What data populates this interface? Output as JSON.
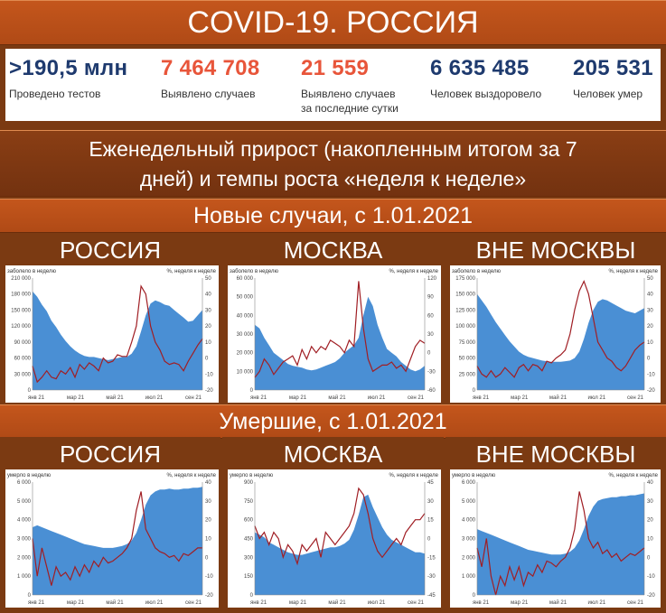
{
  "title": "COVID-19. РОССИЯ",
  "stats": [
    {
      "value": ">190,5 млн",
      "label": "Проведено тестов",
      "color": "blue"
    },
    {
      "value": "7 464 708",
      "label": "Выявлено случаев",
      "color": "red"
    },
    {
      "value": "21 559",
      "label": "Выявлено случаев\nза последние сутки",
      "color": "red"
    },
    {
      "value": "6 635 485",
      "label": "Человек выздоровело",
      "color": "blue"
    },
    {
      "value": "205 531",
      "label": "Человек умер",
      "color": "blue"
    }
  ],
  "subtitle_line1": "Еженедельный прирост (накопленным итогом за 7",
  "subtitle_line2": "дней) и темпы роста «неделя к неделе»",
  "section_cases": "Новые случаи, с 1.01.2021",
  "section_deaths": "Умершие, с 1.01.2021",
  "column_titles": [
    "РОССИЯ",
    "МОСКВА",
    "ВНЕ МОСКВЫ"
  ],
  "colors": {
    "area": "#4a8fd4",
    "line": "#a01e24"
  },
  "chart_data": [
    {
      "type": "area",
      "region": "РОССИЯ",
      "metric": "cases",
      "left_label": "заболело в неделю",
      "right_label": "%, неделя к неделе",
      "y_ticks": [
        "210 000",
        "180 000",
        "150 000",
        "120 000",
        "90 000",
        "60 000",
        "30 000",
        "0"
      ],
      "y_max": 210000,
      "r_ticks": [
        "50",
        "40",
        "30",
        "20",
        "10",
        "0",
        "-10",
        "-20"
      ],
      "r_min": -20,
      "r_max": 50,
      "x_ticks": [
        "янв 21",
        "мар 21",
        "май 21",
        "июл 21",
        "сен 21"
      ],
      "area_values": [
        185000,
        175000,
        160000,
        148000,
        130000,
        118000,
        104000,
        92000,
        82000,
        74000,
        68000,
        64000,
        62000,
        62000,
        60000,
        58000,
        56000,
        58000,
        60000,
        62000,
        62000,
        68000,
        82000,
        110000,
        140000,
        162000,
        168000,
        165000,
        160000,
        158000,
        150000,
        143000,
        136000,
        128000,
        130000,
        140000,
        150000
      ],
      "line_values": [
        -5,
        -15,
        -12,
        -8,
        -12,
        -13,
        -8,
        -10,
        -6,
        -12,
        -4,
        -7,
        -3,
        -5,
        -8,
        0,
        -3,
        -2,
        2,
        1,
        1,
        10,
        20,
        45,
        40,
        20,
        10,
        5,
        -2,
        -4,
        -3,
        -4,
        -8,
        -2,
        3,
        8,
        12
      ]
    },
    {
      "type": "area",
      "region": "МОСКВА",
      "metric": "cases",
      "left_label": "заболело в неделю",
      "right_label": "%, неделя к неделе",
      "y_ticks": [
        "60 000",
        "50 000",
        "40 000",
        "30 000",
        "20 000",
        "10 000",
        "0"
      ],
      "y_max": 60000,
      "r_ticks": [
        "120",
        "90",
        "60",
        "30",
        "0",
        "-30",
        "-60"
      ],
      "r_min": -60,
      "r_max": 120,
      "x_ticks": [
        "янв 21",
        "мар 21",
        "май 21",
        "июл 21",
        "сен 21"
      ],
      "area_values": [
        35000,
        33000,
        28000,
        24000,
        20000,
        18000,
        16000,
        14000,
        13000,
        12500,
        12000,
        11000,
        10500,
        11000,
        12000,
        13000,
        14000,
        15000,
        17000,
        20000,
        22000,
        24000,
        28000,
        40000,
        50000,
        45000,
        35000,
        28000,
        22000,
        20000,
        18000,
        15000,
        13000,
        11000,
        10000,
        11000,
        13000
      ],
      "line_values": [
        -40,
        -30,
        -10,
        -20,
        -35,
        -25,
        -15,
        -10,
        -5,
        -20,
        5,
        -10,
        10,
        0,
        10,
        5,
        20,
        15,
        10,
        0,
        20,
        10,
        115,
        40,
        -10,
        -30,
        -25,
        -20,
        -20,
        -15,
        -25,
        -20,
        -30,
        -10,
        10,
        20,
        15
      ]
    },
    {
      "type": "area",
      "region": "ВНЕ МОСКВЫ",
      "metric": "cases",
      "left_label": "заболело в неделю",
      "right_label": "%, неделя к неделе",
      "y_ticks": [
        "175 000",
        "150 000",
        "125 000",
        "100 000",
        "75 000",
        "50 000",
        "25 000",
        "0"
      ],
      "y_max": 175000,
      "r_ticks": [
        "50",
        "40",
        "30",
        "20",
        "10",
        "0",
        "-10",
        "-20"
      ],
      "r_min": -20,
      "r_max": 50,
      "x_ticks": [
        "янв 21",
        "мар 21",
        "май 21",
        "июл 21",
        "сен 21"
      ],
      "area_values": [
        150000,
        140000,
        130000,
        118000,
        106000,
        96000,
        86000,
        76000,
        68000,
        60000,
        55000,
        52000,
        50000,
        48000,
        46000,
        45000,
        44000,
        44000,
        44000,
        45000,
        46000,
        50000,
        60000,
        80000,
        105000,
        125000,
        138000,
        142000,
        140000,
        136000,
        132000,
        128000,
        124000,
        122000,
        120000,
        124000,
        128000
      ],
      "line_values": [
        -5,
        -10,
        -12,
        -8,
        -12,
        -10,
        -6,
        -9,
        -12,
        -6,
        -4,
        -8,
        -4,
        -5,
        -8,
        -2,
        -3,
        0,
        2,
        5,
        15,
        30,
        42,
        48,
        40,
        25,
        10,
        5,
        0,
        -2,
        -6,
        -8,
        -5,
        0,
        5,
        8,
        10
      ]
    },
    {
      "type": "area",
      "region": "РОССИЯ",
      "metric": "deaths",
      "left_label": "умерло в неделю",
      "right_label": "%, неделя к неделе",
      "y_ticks": [
        "6 000",
        "5 000",
        "4 000",
        "3 000",
        "2 000",
        "1 000",
        "0"
      ],
      "y_max": 6000,
      "r_ticks": [
        "40",
        "30",
        "20",
        "10",
        "0",
        "-10",
        "-20"
      ],
      "r_min": -20,
      "r_max": 40,
      "x_ticks": [
        "янв 21",
        "мар 21",
        "май 21",
        "июл 21",
        "сен 21"
      ],
      "area_values": [
        3600,
        3700,
        3600,
        3500,
        3400,
        3300,
        3200,
        3100,
        3000,
        2900,
        2800,
        2700,
        2650,
        2600,
        2550,
        2500,
        2500,
        2500,
        2550,
        2600,
        2700,
        2900,
        3300,
        4000,
        4800,
        5300,
        5500,
        5600,
        5600,
        5650,
        5600,
        5600,
        5650,
        5650,
        5700,
        5700,
        5750
      ],
      "line_values": [
        10,
        -10,
        5,
        -5,
        -15,
        -5,
        -10,
        -8,
        -12,
        -5,
        -10,
        -4,
        -8,
        -2,
        -5,
        0,
        -3,
        -2,
        0,
        2,
        5,
        10,
        25,
        35,
        15,
        10,
        5,
        3,
        2,
        0,
        1,
        -2,
        2,
        1,
        3,
        5,
        5
      ]
    },
    {
      "type": "area",
      "region": "МОСКВА",
      "metric": "deaths",
      "left_label": "умерло в неделю",
      "right_label": "%, неделя к неделе",
      "y_ticks": [
        "900",
        "750",
        "600",
        "450",
        "300",
        "150",
        "0"
      ],
      "y_max": 900,
      "r_ticks": [
        "45",
        "30",
        "15",
        "0",
        "-15",
        "-30",
        "-45"
      ],
      "r_min": -45,
      "r_max": 45,
      "x_ticks": [
        "янв 21",
        "мар 21",
        "май 21",
        "июл 21",
        "сен 21"
      ],
      "area_values": [
        500,
        480,
        460,
        420,
        400,
        380,
        360,
        340,
        330,
        320,
        320,
        330,
        340,
        350,
        360,
        370,
        380,
        380,
        390,
        410,
        440,
        520,
        640,
        780,
        800,
        700,
        620,
        540,
        480,
        440,
        420,
        400,
        380,
        360,
        340,
        340,
        330
      ],
      "line_values": [
        10,
        0,
        5,
        -5,
        5,
        0,
        -15,
        -5,
        -10,
        -20,
        -5,
        -10,
        -5,
        0,
        -15,
        5,
        0,
        -5,
        0,
        5,
        10,
        20,
        40,
        35,
        20,
        0,
        -10,
        -15,
        -10,
        -5,
        0,
        -5,
        5,
        10,
        15,
        15,
        20
      ]
    },
    {
      "type": "area",
      "region": "ВНЕ МОСКВЫ",
      "metric": "deaths",
      "left_label": "умерло в неделю",
      "right_label": "%, неделя к неделе",
      "y_ticks": [
        "6 000",
        "5 000",
        "4 000",
        "3 000",
        "2 000",
        "1 000",
        "0"
      ],
      "y_max": 6000,
      "r_ticks": [
        "40",
        "30",
        "20",
        "10",
        "0",
        "-10",
        "-20"
      ],
      "r_min": -20,
      "r_max": 40,
      "x_ticks": [
        "янв 21",
        "мар 21",
        "май 21",
        "июл 21",
        "сен 21"
      ],
      "area_values": [
        3500,
        3400,
        3300,
        3200,
        3100,
        3000,
        2900,
        2800,
        2700,
        2600,
        2500,
        2400,
        2350,
        2300,
        2250,
        2200,
        2150,
        2150,
        2150,
        2200,
        2300,
        2500,
        2900,
        3500,
        4200,
        4700,
        5000,
        5100,
        5150,
        5200,
        5200,
        5250,
        5250,
        5300,
        5300,
        5350,
        5400
      ],
      "line_values": [
        5,
        -5,
        10,
        -10,
        -20,
        -10,
        -15,
        -5,
        -12,
        -5,
        -15,
        -8,
        -10,
        -4,
        -8,
        -2,
        -3,
        -5,
        -2,
        0,
        5,
        15,
        35,
        25,
        10,
        5,
        8,
        2,
        4,
        0,
        2,
        -2,
        0,
        2,
        1,
        3,
        5
      ]
    }
  ]
}
